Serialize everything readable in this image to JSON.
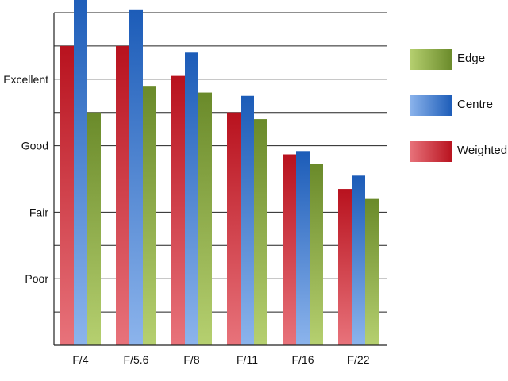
{
  "chart_data": {
    "type": "bar",
    "title": "",
    "xlabel": "",
    "ylabel": "",
    "categories": [
      "F/4",
      "F/5.6",
      "F/8",
      "F/11",
      "F/16",
      "F/22"
    ],
    "y_tick_labels": [
      {
        "label": "Poor",
        "value": 1
      },
      {
        "label": "Fair",
        "value": 2
      },
      {
        "label": "Good",
        "value": 3
      },
      {
        "label": "Excellent",
        "value": 4
      }
    ],
    "ylim": [
      0,
      5
    ],
    "grid": true,
    "legend_position": "right",
    "series": [
      {
        "name": "Weighted",
        "values": [
          4.5,
          4.5,
          4.05,
          3.5,
          2.87,
          2.35
        ],
        "color_top": "#b8121e",
        "color_bottom": "#e8737b"
      },
      {
        "name": "Centre",
        "values": [
          5.35,
          5.05,
          4.4,
          3.75,
          2.92,
          2.55
        ],
        "color_top": "#1c5cb8",
        "color_bottom": "#8cb4ec"
      },
      {
        "name": "Edge",
        "values": [
          3.5,
          3.9,
          3.8,
          3.4,
          2.73,
          2.2
        ],
        "color_top": "#6a8a2a",
        "color_bottom": "#b6d070"
      }
    ]
  },
  "legend": [
    {
      "label": "Edge",
      "color_light": "#b6d070",
      "color_dark": "#6a8a2a"
    },
    {
      "label": "Centre",
      "color_light": "#8cb4ec",
      "color_dark": "#1c5cb8"
    },
    {
      "label": "Weighted",
      "color_light": "#e8737b",
      "color_dark": "#b8121e"
    }
  ]
}
